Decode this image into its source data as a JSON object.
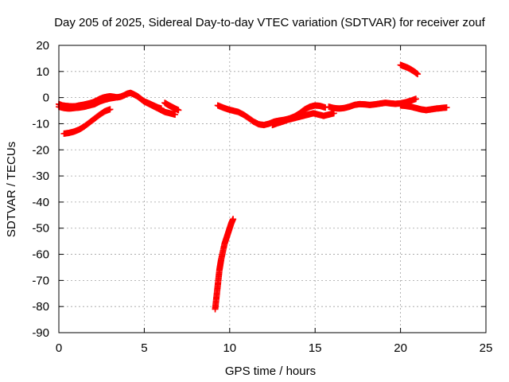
{
  "chart_data": {
    "type": "scatter",
    "title": "Day 205 of 2025, Sidereal Day-to-day VTEC variation (SDTVAR) for receiver zouf",
    "xlabel": "GPS time / hours",
    "ylabel": "SDTVAR / TECUs",
    "xlim": [
      0,
      25
    ],
    "ylim": [
      -90,
      20
    ],
    "xticks": [
      0,
      5,
      10,
      15,
      20,
      25
    ],
    "yticks": [
      20,
      10,
      0,
      -10,
      -20,
      -30,
      -40,
      -50,
      -60,
      -70,
      -80,
      -90
    ],
    "grid": true,
    "marker": "+",
    "colors": {
      "series": "#ff0000",
      "grid": "#a0a0a0",
      "axis": "#000000"
    },
    "series": [
      {
        "name": "upper-band-early",
        "x": [
          0.0,
          0.2,
          0.4,
          0.6,
          0.8,
          1.0,
          1.2,
          1.4,
          1.6,
          1.8,
          2.0,
          2.2,
          2.4,
          2.6,
          2.8,
          3.0,
          3.2,
          3.4,
          3.6,
          3.8,
          4.0,
          4.2,
          4.4,
          4.6,
          4.8,
          5.0,
          5.2,
          5.4,
          5.6,
          5.8,
          6.0
        ],
        "y": [
          -2.5,
          -3.0,
          -3.2,
          -3.3,
          -3.4,
          -3.3,
          -3.0,
          -2.8,
          -2.5,
          -2.2,
          -1.8,
          -1.2,
          -0.5,
          0.0,
          0.3,
          0.5,
          0.3,
          0.1,
          0.3,
          0.8,
          1.5,
          1.8,
          1.2,
          0.5,
          -0.5,
          -1.5,
          -2.0,
          -2.6,
          -3.2,
          -3.8,
          -4.2
        ]
      },
      {
        "name": "upper-band-early-lower",
        "x": [
          0.0,
          0.3,
          0.6,
          0.9,
          1.2,
          1.5,
          1.8,
          2.1,
          2.4,
          2.7,
          3.0,
          3.3
        ],
        "y": [
          -3.5,
          -4.0,
          -4.2,
          -4.0,
          -3.8,
          -3.5,
          -3.0,
          -2.5,
          -1.5,
          -0.8,
          -0.3,
          0.0
        ]
      },
      {
        "name": "morning-branch",
        "x": [
          5.0,
          5.3,
          5.6,
          5.9,
          6.2,
          6.5,
          6.8
        ],
        "y": [
          -1.5,
          -2.5,
          -3.5,
          -4.5,
          -5.5,
          -6.0,
          -6.5
        ]
      },
      {
        "name": "morning-branch-2",
        "x": [
          6.2,
          6.4,
          6.6,
          6.8,
          7.0
        ],
        "y": [
          -2.0,
          -2.8,
          -3.5,
          -4.2,
          -4.8
        ]
      },
      {
        "name": "lower-rising-track",
        "x": [
          0.3,
          0.6,
          0.9,
          1.2,
          1.5,
          1.8,
          2.1,
          2.4,
          2.7,
          3.0
        ],
        "y": [
          -13.8,
          -13.5,
          -13.0,
          -12.2,
          -11.0,
          -9.5,
          -8.0,
          -6.5,
          -5.2,
          -4.5
        ]
      },
      {
        "name": "deep-excursion",
        "x": [
          9.15,
          9.2,
          9.25,
          9.3,
          9.35,
          9.4,
          9.45,
          9.5,
          9.6,
          9.7,
          9.8,
          9.9,
          10.0,
          10.1,
          10.2
        ],
        "y": [
          -81.0,
          -78.0,
          -75.0,
          -72.0,
          -69.0,
          -66.0,
          -64.0,
          -62.0,
          -59.0,
          -56.0,
          -54.0,
          -52.0,
          -50.0,
          -48.0,
          -46.5
        ]
      },
      {
        "name": "midday-dip",
        "x": [
          9.3,
          9.6,
          9.9,
          10.2,
          10.5,
          10.8,
          11.1,
          11.4,
          11.7,
          12.0,
          12.3,
          12.6,
          12.9,
          13.2,
          13.5,
          13.8,
          14.1,
          14.4,
          14.7,
          15.0,
          15.3,
          15.6
        ],
        "y": [
          -3.0,
          -3.8,
          -4.5,
          -5.0,
          -5.5,
          -6.5,
          -7.8,
          -9.2,
          -10.2,
          -10.5,
          -10.0,
          -9.2,
          -8.8,
          -8.5,
          -8.0,
          -7.2,
          -6.0,
          -4.5,
          -3.5,
          -3.0,
          -3.2,
          -3.8
        ]
      },
      {
        "name": "midday-dip-branch",
        "x": [
          12.5,
          12.8,
          13.1,
          13.4,
          13.7,
          14.0,
          14.3,
          14.6,
          14.9,
          15.2,
          15.5,
          15.8,
          16.1
        ],
        "y": [
          -10.5,
          -9.8,
          -9.2,
          -8.5,
          -8.0,
          -7.5,
          -7.0,
          -6.5,
          -6.0,
          -6.5,
          -7.0,
          -6.5,
          -6.0
        ]
      },
      {
        "name": "afternoon-band",
        "x": [
          15.8,
          16.1,
          16.4,
          16.7,
          17.0,
          17.3,
          17.6,
          17.9,
          18.2,
          18.5,
          18.8,
          19.1,
          19.4,
          19.7,
          20.0,
          20.3,
          20.6,
          20.9
        ],
        "y": [
          -3.5,
          -4.0,
          -4.2,
          -4.0,
          -3.5,
          -2.8,
          -2.5,
          -2.6,
          -2.8,
          -2.6,
          -2.3,
          -2.0,
          -2.2,
          -2.4,
          -2.2,
          -1.8,
          -1.2,
          -0.5
        ]
      },
      {
        "name": "evening-band",
        "x": [
          20.0,
          20.3,
          20.6,
          20.9,
          21.2,
          21.5,
          21.8,
          22.1,
          22.4,
          22.7
        ],
        "y": [
          -3.0,
          -3.2,
          -3.5,
          -4.0,
          -4.5,
          -4.8,
          -4.5,
          -4.2,
          -4.0,
          -3.8
        ]
      },
      {
        "name": "evening-high-arc",
        "x": [
          20.0,
          20.2,
          20.4,
          20.6,
          20.8,
          21.0
        ],
        "y": [
          12.5,
          12.0,
          11.5,
          10.8,
          10.0,
          9.0
        ]
      }
    ]
  }
}
